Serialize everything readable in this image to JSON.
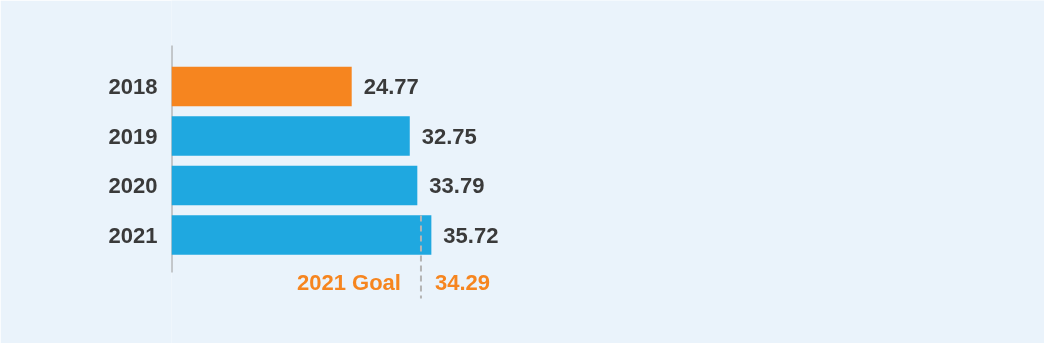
{
  "chart_data": {
    "type": "bar",
    "orientation": "horizontal",
    "categories": [
      "2018",
      "2019",
      "2020",
      "2021"
    ],
    "values": [
      24.77,
      32.75,
      33.79,
      35.72
    ],
    "colors": [
      "#f6851f",
      "#1fa8e0",
      "#1fa8e0",
      "#1fa8e0"
    ],
    "xlim": [
      0,
      120
    ],
    "data_labels": true,
    "grid": false,
    "tick_labels": "y",
    "ref_lines": [
      {
        "axis": "x",
        "value": 34.29,
        "label": "2021 Goal",
        "color": "#b4b4b4",
        "line_style": "dashed"
      }
    ],
    "annotations": [
      {
        "text": "34.29",
        "x": 34.29
      }
    ]
  }
}
